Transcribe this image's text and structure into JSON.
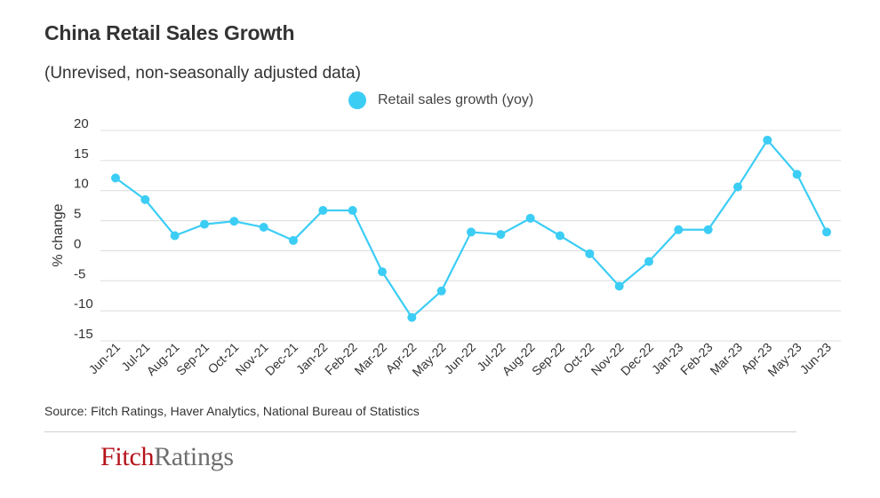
{
  "header": {
    "title": "China Retail Sales Growth",
    "subtitle": "(Unrevised, non-seasonally adjusted data)"
  },
  "legend": {
    "label": "Retail sales growth (yoy)"
  },
  "chart_data": {
    "type": "line",
    "title": "China Retail Sales Growth",
    "subtitle": "(Unrevised, non-seasonally adjusted data)",
    "xlabel": "",
    "ylabel": "% change",
    "ylim": [
      -15,
      20
    ],
    "yticks": [
      20,
      15,
      10,
      5,
      0,
      -5,
      -10,
      -15
    ],
    "ytick_labels": [
      "20",
      "15",
      "10",
      "5",
      "0",
      "-5",
      "-10",
      "-15"
    ],
    "grid": true,
    "legend_position": "top-center",
    "categories": [
      "Jun-21",
      "Jul-21",
      "Aug-21",
      "Sep-21",
      "Oct-21",
      "Nov-21",
      "Dec-21",
      "Jan-22",
      "Feb-22",
      "Mar-22",
      "Apr-22",
      "May-22",
      "Jun-22",
      "Jul-22",
      "Aug-22",
      "Sep-22",
      "Oct-22",
      "Nov-22",
      "Dec-22",
      "Jan-23",
      "Feb-23",
      "Mar-23",
      "Apr-23",
      "May-23",
      "Jun-23"
    ],
    "series": [
      {
        "name": "Retail sales growth (yoy)",
        "color": "#3ccdf5",
        "values": [
          12.1,
          8.5,
          2.5,
          4.4,
          4.9,
          3.9,
          1.7,
          6.7,
          6.7,
          -3.5,
          -11.1,
          -6.7,
          3.1,
          2.7,
          5.4,
          2.5,
          -0.5,
          -5.9,
          -1.8,
          3.5,
          3.5,
          10.6,
          18.4,
          12.7,
          3.1
        ]
      }
    ]
  },
  "footer": {
    "source": "Source: Fitch Ratings, Haver Analytics, National Bureau of Statistics",
    "logo_part1": "Fitch",
    "logo_part2": "Ratings"
  }
}
